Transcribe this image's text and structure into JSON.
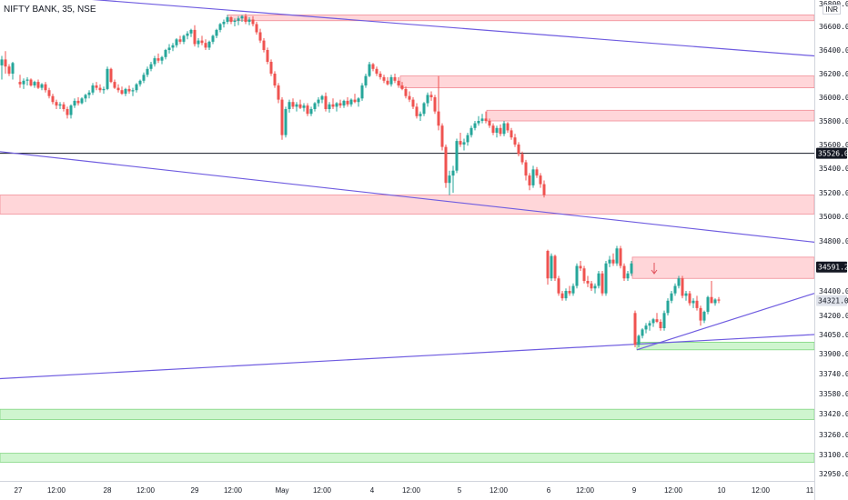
{
  "header": {
    "symbol": "NIFTY BANK, 35, NSE",
    "currency": "INR"
  },
  "chart_data": {
    "type": "candlestick",
    "title": "NIFTY BANK, 35, NSE",
    "ylim": [
      32850,
      36800
    ],
    "y_ticks": [
      36800,
      36600,
      36400,
      36200,
      36000,
      35800,
      35600,
      35400,
      35200,
      35000,
      34800,
      34400,
      34200,
      34050,
      33900,
      33740,
      33580,
      33420,
      33260,
      33100,
      32950
    ],
    "x_ticks": [
      "27",
      "12:00",
      "28",
      "12:00",
      "29",
      "12:00",
      "May",
      "12:00",
      "4",
      "12:00",
      "5",
      "12:00",
      "6",
      "12:00",
      "9",
      "12:00",
      "10",
      "12:00",
      "11"
    ],
    "price_tags": [
      {
        "value": "35526.00",
        "price": 35526,
        "style": "dark"
      },
      {
        "value": "34591.20",
        "price": 34591.2,
        "style": "dark"
      },
      {
        "value": "34321.05",
        "price": 34321.05,
        "style": "light"
      }
    ],
    "horizontal_line": 35526,
    "zones": [
      {
        "kind": "resistance",
        "from_x": 250,
        "low": 36650,
        "high": 36700
      },
      {
        "kind": "resistance",
        "from_x": 440,
        "low": 36080,
        "high": 36180
      },
      {
        "kind": "resistance",
        "from_x": 535,
        "low": 35800,
        "high": 35890
      },
      {
        "kind": "resistance",
        "from_x": 0,
        "low": 35020,
        "high": 35180
      },
      {
        "kind": "resistance",
        "from_x": 695,
        "low": 34500,
        "high": 34670
      },
      {
        "kind": "support",
        "from_x": 700,
        "low": 33930,
        "high": 33990
      },
      {
        "kind": "support",
        "from_x": 0,
        "low": 33375,
        "high": 33455
      },
      {
        "kind": "support",
        "from_x": 0,
        "low": 33040,
        "high": 33110
      }
    ],
    "trendlines": [
      {
        "x1": 0,
        "p1": 36900,
        "x2": 895,
        "p2": 36350
      },
      {
        "x1": 0,
        "p1": 35540,
        "x2": 895,
        "p2": 34790
      },
      {
        "x1": 0,
        "p1": 33700,
        "x2": 895,
        "p2": 34050
      },
      {
        "x1": 700,
        "p1": 33930,
        "x2": 895,
        "p2": 34380
      }
    ],
    "candles": [
      [
        2,
        36270,
        36350,
        36150,
        36320
      ],
      [
        6,
        36320,
        36390,
        36200,
        36260
      ],
      [
        10,
        36260,
        36280,
        36180,
        36200
      ],
      [
        14,
        36200,
        36300,
        36150,
        36290
      ],
      [
        22,
        36130,
        36190,
        36080,
        36110
      ],
      [
        26,
        36110,
        36160,
        36070,
        36140
      ],
      [
        30,
        36140,
        36170,
        36100,
        36150
      ],
      [
        34,
        36150,
        36160,
        36090,
        36100
      ],
      [
        38,
        36100,
        36140,
        36080,
        36130
      ],
      [
        42,
        36130,
        36150,
        36070,
        36080
      ],
      [
        46,
        36080,
        36120,
        36060,
        36110
      ],
      [
        50,
        36110,
        36130,
        36040,
        36060
      ],
      [
        54,
        36060,
        36080,
        35990,
        36010
      ],
      [
        58,
        36010,
        36030,
        35940,
        35960
      ],
      [
        62,
        35960,
        35980,
        35900,
        35930
      ],
      [
        66,
        35930,
        35960,
        35900,
        35940
      ],
      [
        70,
        35940,
        35960,
        35880,
        35900
      ],
      [
        74,
        35900,
        35920,
        35820,
        35850
      ],
      [
        78,
        35850,
        35940,
        35820,
        35930
      ],
      [
        82,
        35930,
        35990,
        35910,
        35970
      ],
      [
        86,
        35970,
        36000,
        35930,
        35950
      ],
      [
        90,
        35950,
        36000,
        35940,
        35990
      ],
      [
        94,
        35990,
        36030,
        35960,
        36020
      ],
      [
        98,
        36020,
        36060,
        35990,
        36040
      ],
      [
        102,
        36040,
        36120,
        36020,
        36100
      ],
      [
        106,
        36100,
        36130,
        36060,
        36080
      ],
      [
        110,
        36080,
        36110,
        36040,
        36060
      ],
      [
        114,
        36060,
        36090,
        36030,
        36070
      ],
      [
        118,
        36070,
        36260,
        36060,
        36240
      ],
      [
        122,
        36240,
        36250,
        36120,
        36130
      ],
      [
        126,
        36130,
        36150,
        36070,
        36080
      ],
      [
        130,
        36080,
        36110,
        36040,
        36060
      ],
      [
        134,
        36060,
        36090,
        36020,
        36030
      ],
      [
        138,
        36030,
        36080,
        36010,
        36070
      ],
      [
        142,
        36070,
        36100,
        36030,
        36050
      ],
      [
        146,
        36050,
        36080,
        36010,
        36060
      ],
      [
        150,
        36060,
        36120,
        36040,
        36110
      ],
      [
        154,
        36110,
        36150,
        36090,
        36140
      ],
      [
        158,
        36140,
        36210,
        36120,
        36190
      ],
      [
        162,
        36190,
        36260,
        36170,
        36240
      ],
      [
        166,
        36240,
        36300,
        36220,
        36280
      ],
      [
        170,
        36280,
        36350,
        36260,
        36330
      ],
      [
        174,
        36330,
        36370,
        36290,
        36310
      ],
      [
        178,
        36310,
        36350,
        36280,
        36340
      ],
      [
        182,
        36340,
        36410,
        36320,
        36400
      ],
      [
        186,
        36400,
        36450,
        36370,
        36420
      ],
      [
        190,
        36420,
        36460,
        36390,
        36440
      ],
      [
        194,
        36440,
        36500,
        36420,
        36490
      ],
      [
        198,
        36490,
        36520,
        36450,
        36470
      ],
      [
        202,
        36470,
        36530,
        36450,
        36520
      ],
      [
        206,
        36520,
        36560,
        36490,
        36540
      ],
      [
        210,
        36540,
        36580,
        36510,
        36570
      ],
      [
        214,
        36570,
        36610,
        36430,
        36450
      ],
      [
        218,
        36450,
        36500,
        36420,
        36480
      ],
      [
        222,
        36480,
        36520,
        36440,
        36460
      ],
      [
        226,
        36460,
        36490,
        36400,
        36420
      ],
      [
        230,
        36420,
        36480,
        36400,
        36470
      ],
      [
        234,
        36470,
        36530,
        36450,
        36520
      ],
      [
        238,
        36520,
        36580,
        36500,
        36570
      ],
      [
        242,
        36570,
        36630,
        36550,
        36620
      ],
      [
        246,
        36620,
        36660,
        36590,
        36640
      ],
      [
        250,
        36640,
        36700,
        36620,
        36680
      ],
      [
        254,
        36680,
        36690,
        36620,
        36640
      ],
      [
        258,
        36640,
        36670,
        36600,
        36650
      ],
      [
        262,
        36650,
        36690,
        36610,
        36670
      ],
      [
        266,
        36670,
        36700,
        36640,
        36690
      ],
      [
        270,
        36690,
        36710,
        36620,
        36640
      ],
      [
        274,
        36640,
        36680,
        36610,
        36660
      ],
      [
        278,
        36660,
        36690,
        36600,
        36620
      ],
      [
        282,
        36620,
        36640,
        36530,
        36550
      ],
      [
        286,
        36550,
        36580,
        36460,
        36480
      ],
      [
        290,
        36480,
        36500,
        36380,
        36400
      ],
      [
        294,
        36400,
        36420,
        36280,
        36300
      ],
      [
        298,
        36300,
        36320,
        36180,
        36200
      ],
      [
        302,
        36200,
        36220,
        36080,
        36100
      ],
      [
        306,
        36100,
        36120,
        35950,
        35980
      ],
      [
        310,
        35980,
        36000,
        35640,
        35680
      ],
      [
        314,
        35680,
        35920,
        35660,
        35900
      ],
      [
        318,
        35900,
        35980,
        35870,
        35960
      ],
      [
        322,
        35960,
        35990,
        35900,
        35920
      ],
      [
        326,
        35920,
        35960,
        35880,
        35940
      ],
      [
        330,
        35940,
        35980,
        35900,
        35910
      ],
      [
        334,
        35910,
        35950,
        35880,
        35930
      ],
      [
        338,
        35930,
        35950,
        35840,
        35860
      ],
      [
        342,
        35860,
        35920,
        35840,
        35900
      ],
      [
        346,
        35900,
        35960,
        35880,
        35950
      ],
      [
        350,
        35950,
        36000,
        35920,
        35980
      ],
      [
        354,
        35980,
        36020,
        35950,
        36010
      ],
      [
        358,
        36010,
        36040,
        35880,
        35900
      ],
      [
        362,
        35900,
        35960,
        35870,
        35940
      ],
      [
        366,
        35940,
        35990,
        35900,
        35920
      ],
      [
        370,
        35920,
        35960,
        35880,
        35950
      ],
      [
        374,
        35950,
        35980,
        35910,
        35930
      ],
      [
        378,
        35930,
        35980,
        35910,
        35970
      ],
      [
        382,
        35970,
        36000,
        35920,
        35940
      ],
      [
        386,
        35940,
        35990,
        35920,
        35980
      ],
      [
        390,
        35980,
        36030,
        35950,
        35960
      ],
      [
        394,
        35960,
        36000,
        35920,
        35990
      ],
      [
        398,
        35990,
        36120,
        35970,
        36100
      ],
      [
        402,
        36100,
        36200,
        36080,
        36180
      ],
      [
        406,
        36180,
        36300,
        36170,
        36280
      ],
      [
        410,
        36280,
        36290,
        36220,
        36240
      ],
      [
        414,
        36240,
        36260,
        36180,
        36200
      ],
      [
        418,
        36200,
        36220,
        36150,
        36170
      ],
      [
        422,
        36170,
        36190,
        36120,
        36140
      ],
      [
        426,
        36140,
        36170,
        36100,
        36110
      ],
      [
        430,
        36110,
        36190,
        36090,
        36170
      ],
      [
        434,
        36170,
        36200,
        36120,
        36140
      ],
      [
        438,
        36140,
        36170,
        36080,
        36100
      ],
      [
        442,
        36100,
        36130,
        36060,
        36070
      ],
      [
        446,
        36070,
        36090,
        35990,
        36010
      ],
      [
        450,
        36010,
        36050,
        35960,
        35980
      ],
      [
        454,
        35980,
        36000,
        35900,
        35920
      ],
      [
        458,
        35920,
        35950,
        35820,
        35840
      ],
      [
        462,
        35840,
        35880,
        35800,
        35860
      ],
      [
        466,
        35860,
        35960,
        35840,
        35950
      ],
      [
        470,
        35950,
        36040,
        35920,
        36020
      ],
      [
        474,
        36020,
        36050,
        35970,
        36000
      ],
      [
        478,
        36000,
        36020,
        35860,
        35880
      ],
      [
        482,
        35880,
        36180,
        35720,
        35760
      ],
      [
        486,
        35760,
        35780,
        35550,
        35580
      ],
      [
        490,
        35580,
        35600,
        35240,
        35280
      ],
      [
        494,
        35280,
        35380,
        35180,
        35340
      ],
      [
        498,
        35340,
        35420,
        35200,
        35380
      ],
      [
        502,
        35380,
        35650,
        35360,
        35630
      ],
      [
        506,
        35630,
        35700,
        35580,
        35600
      ],
      [
        510,
        35600,
        35650,
        35550,
        35620
      ],
      [
        514,
        35620,
        35700,
        35590,
        35680
      ],
      [
        518,
        35680,
        35760,
        35660,
        35740
      ],
      [
        522,
        35740,
        35800,
        35720,
        35780
      ],
      [
        526,
        35780,
        35840,
        35760,
        35800
      ],
      [
        530,
        35800,
        35860,
        35780,
        35820
      ],
      [
        534,
        35820,
        35880,
        35780,
        35800
      ],
      [
        538,
        35800,
        35820,
        35740,
        35760
      ],
      [
        542,
        35760,
        35780,
        35680,
        35700
      ],
      [
        546,
        35700,
        35760,
        35660,
        35740
      ],
      [
        550,
        35740,
        35770,
        35670,
        35690
      ],
      [
        554,
        35690,
        35800,
        35670,
        35780
      ],
      [
        558,
        35780,
        35790,
        35700,
        35720
      ],
      [
        562,
        35720,
        35740,
        35640,
        35660
      ],
      [
        566,
        35660,
        35690,
        35580,
        35600
      ],
      [
        570,
        35600,
        35620,
        35500,
        35520
      ],
      [
        574,
        35520,
        35540,
        35430,
        35450
      ],
      [
        578,
        35450,
        35470,
        35300,
        35340
      ],
      [
        582,
        35340,
        35360,
        35220,
        35260
      ],
      [
        586,
        35260,
        35420,
        35240,
        35390
      ],
      [
        590,
        35390,
        35410,
        35320,
        35340
      ],
      [
        594,
        35340,
        35360,
        35240,
        35270
      ],
      [
        598,
        35270,
        35300,
        35160,
        35180
      ],
      [
        602,
        34720,
        34730,
        34450,
        34500
      ],
      [
        606,
        34500,
        34700,
        34480,
        34680
      ],
      [
        610,
        34680,
        34690,
        34480,
        34500
      ],
      [
        614,
        34500,
        34520,
        34360,
        34380
      ],
      [
        618,
        34380,
        34400,
        34320,
        34340
      ],
      [
        622,
        34340,
        34420,
        34320,
        34400
      ],
      [
        626,
        34400,
        34440,
        34360,
        34380
      ],
      [
        630,
        34380,
        34460,
        34360,
        34440
      ],
      [
        634,
        34440,
        34620,
        34420,
        34600
      ],
      [
        638,
        34600,
        34640,
        34560,
        34580
      ],
      [
        642,
        34580,
        34600,
        34460,
        34480
      ],
      [
        646,
        34480,
        34520,
        34430,
        34460
      ],
      [
        650,
        34460,
        34480,
        34400,
        34420
      ],
      [
        654,
        34420,
        34460,
        34380,
        34440
      ],
      [
        658,
        34440,
        34560,
        34420,
        34540
      ],
      [
        662,
        34540,
        34560,
        34360,
        34380
      ],
      [
        666,
        34380,
        34640,
        34360,
        34620
      ],
      [
        670,
        34620,
        34680,
        34590,
        34650
      ],
      [
        674,
        34650,
        34700,
        34600,
        34620
      ],
      [
        678,
        34620,
        34760,
        34600,
        34740
      ],
      [
        682,
        34740,
        34760,
        34580,
        34600
      ],
      [
        686,
        34600,
        34620,
        34480,
        34500
      ],
      [
        690,
        34500,
        34560,
        34480,
        34540
      ],
      [
        694,
        34540,
        34640,
        34520,
        34620
      ],
      [
        698,
        34220,
        34240,
        33950,
        33970
      ],
      [
        702,
        33970,
        34050,
        33950,
        34040
      ],
      [
        706,
        34040,
        34100,
        34020,
        34090
      ],
      [
        710,
        34090,
        34140,
        34060,
        34120
      ],
      [
        714,
        34120,
        34160,
        34080,
        34140
      ],
      [
        718,
        34140,
        34180,
        34110,
        34170
      ],
      [
        722,
        34170,
        34220,
        34140,
        34150
      ],
      [
        726,
        34150,
        34170,
        34080,
        34100
      ],
      [
        730,
        34100,
        34240,
        34080,
        34220
      ],
      [
        734,
        34220,
        34340,
        34200,
        34320
      ],
      [
        738,
        34320,
        34400,
        34300,
        34380
      ],
      [
        742,
        34380,
        34460,
        34360,
        34440
      ],
      [
        746,
        34440,
        34520,
        34420,
        34500
      ],
      [
        750,
        34500,
        34520,
        34340,
        34360
      ],
      [
        754,
        34360,
        34400,
        34320,
        34380
      ],
      [
        758,
        34380,
        34400,
        34280,
        34300
      ],
      [
        762,
        34300,
        34340,
        34260,
        34320
      ],
      [
        766,
        34320,
        34360,
        34240,
        34260
      ],
      [
        770,
        34260,
        34280,
        34120,
        34160
      ],
      [
        774,
        34160,
        34240,
        34140,
        34230
      ],
      [
        778,
        34230,
        34360,
        34210,
        34350
      ],
      [
        782,
        34350,
        34480,
        34320,
        34300
      ],
      [
        786,
        34300,
        34340,
        34280,
        34330
      ],
      [
        790,
        34330,
        34350,
        34300,
        34321
      ]
    ]
  }
}
